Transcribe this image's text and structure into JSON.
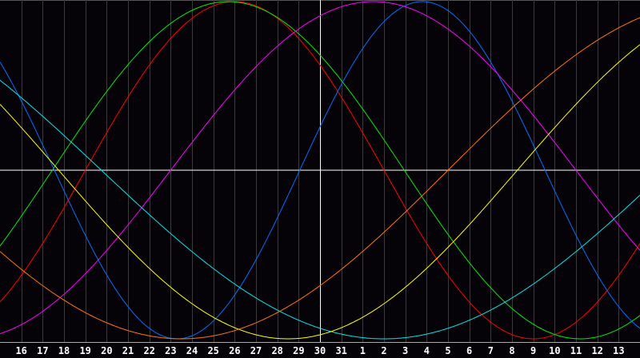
{
  "chart_data": {
    "type": "line",
    "title": "",
    "xlabel": "",
    "ylabel": "",
    "grid": true,
    "x_tick_labels": [
      "16",
      "17",
      "18",
      "19",
      "20",
      "21",
      "22",
      "23",
      "24",
      "25",
      "26",
      "27",
      "28",
      "29",
      "30",
      "31",
      "1",
      "2",
      "3",
      "4",
      "5",
      "6",
      "7",
      "8",
      "9",
      "10",
      "11",
      "12",
      "13"
    ],
    "marked_day": "30",
    "ylim": [
      -1,
      1
    ],
    "series": [
      {
        "color": "#ff0000",
        "period_days": 28,
        "peak_day_index": 26.0
      },
      {
        "color": "#00ee00",
        "period_days": 33,
        "peak_day_index": 25.7
      },
      {
        "color": "#0070ff",
        "period_days": 23,
        "peak_day_index": 34.8
      },
      {
        "color": "#ff00ff",
        "period_days": 38,
        "peak_day_index": 32.5
      },
      {
        "color": "#00e8e8",
        "period_days": 53,
        "peak_day_index": 6.5
      },
      {
        "color": "#ffff00",
        "period_days": 43,
        "peak_day_index": 7.0
      },
      {
        "color": "#ff7700",
        "period_days": 50,
        "peak_day_index": -1.5
      }
    ]
  },
  "colors": {
    "background": "#050308",
    "grid": "#3a3a3a",
    "axis": "#ffffff"
  }
}
